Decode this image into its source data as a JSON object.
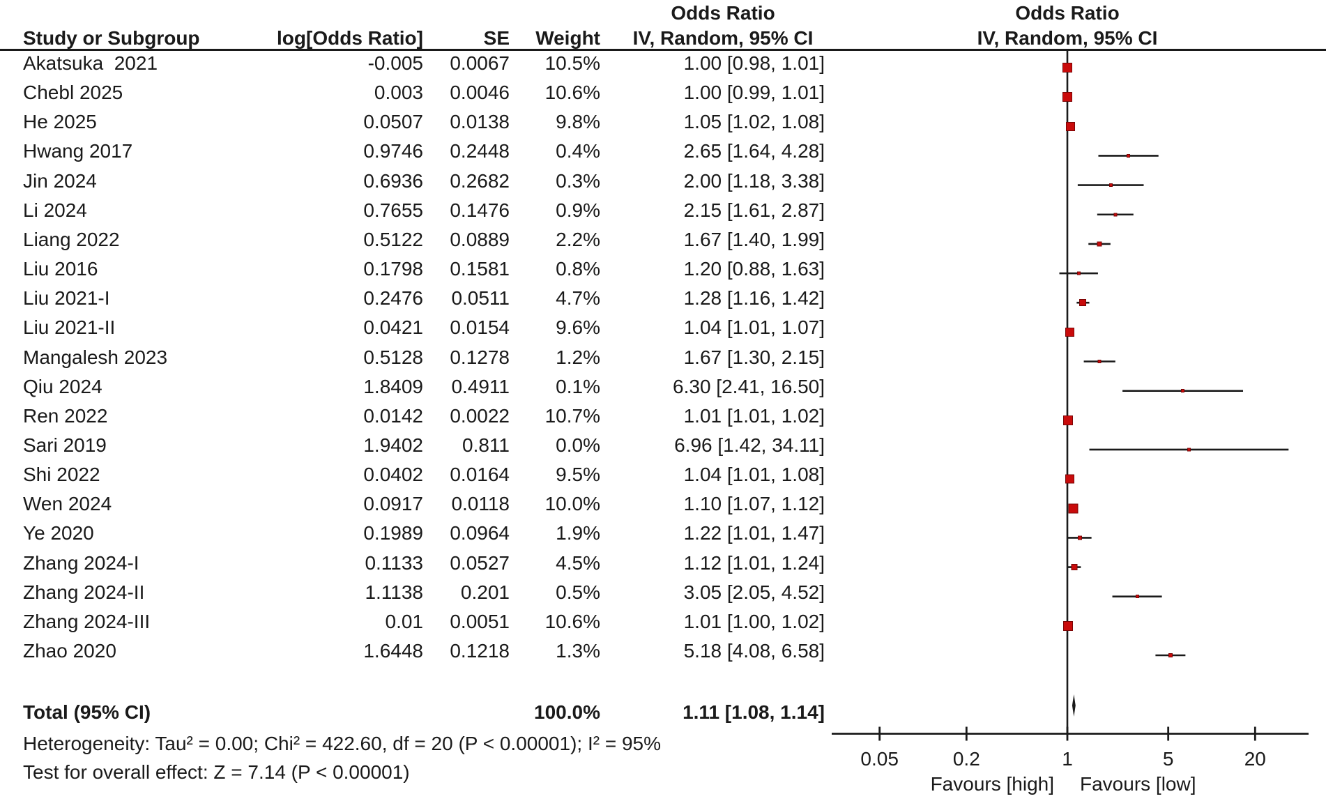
{
  "header": {
    "effect_title_left": "Odds Ratio",
    "effect_title_right": "Odds Ratio",
    "col_study": "Study or Subgroup",
    "col_logor": "log[Odds Ratio]",
    "col_se": "SE",
    "col_weight": "Weight",
    "col_ci_left": "IV, Random, 95% CI",
    "col_ci_right": "IV, Random, 95% CI"
  },
  "chart_data": {
    "type": "forest",
    "x_scale": "log",
    "axis_ticks": [
      {
        "value": 0.05,
        "label": "0.05"
      },
      {
        "value": 0.2,
        "label": "0.2"
      },
      {
        "value": 1,
        "label": "1"
      },
      {
        "value": 5,
        "label": "5"
      },
      {
        "value": 20,
        "label": "20"
      }
    ],
    "null_line_value": 1,
    "favours_left": "Favours [high]",
    "favours_right": "Favours [low]",
    "marker_color": "#c90b0b",
    "marker_border": "#7a0404",
    "line_color": "#1a1a1a",
    "studies": [
      {
        "name": "Akatsuka  2021",
        "logor": "-0.005",
        "se": "0.0067",
        "weight": "10.5%",
        "weight_pct": 10.5,
        "ci_text": "1.00 [0.98, 1.01]",
        "or": 1.0,
        "lo": 0.98,
        "hi": 1.01
      },
      {
        "name": "Chebl 2025",
        "logor": "0.003",
        "se": "0.0046",
        "weight": "10.6%",
        "weight_pct": 10.6,
        "ci_text": "1.00 [0.99, 1.01]",
        "or": 1.0,
        "lo": 0.99,
        "hi": 1.01
      },
      {
        "name": "He 2025",
        "logor": "0.0507",
        "se": "0.0138",
        "weight": "9.8%",
        "weight_pct": 9.8,
        "ci_text": "1.05 [1.02, 1.08]",
        "or": 1.05,
        "lo": 1.02,
        "hi": 1.08
      },
      {
        "name": "Hwang 2017",
        "logor": "0.9746",
        "se": "0.2448",
        "weight": "0.4%",
        "weight_pct": 0.4,
        "ci_text": "2.65 [1.64, 4.28]",
        "or": 2.65,
        "lo": 1.64,
        "hi": 4.28
      },
      {
        "name": "Jin 2024",
        "logor": "0.6936",
        "se": "0.2682",
        "weight": "0.3%",
        "weight_pct": 0.3,
        "ci_text": "2.00 [1.18, 3.38]",
        "or": 2.0,
        "lo": 1.18,
        "hi": 3.38
      },
      {
        "name": "Li 2024",
        "logor": "0.7655",
        "se": "0.1476",
        "weight": "0.9%",
        "weight_pct": 0.9,
        "ci_text": "2.15 [1.61, 2.87]",
        "or": 2.15,
        "lo": 1.61,
        "hi": 2.87
      },
      {
        "name": "Liang 2022",
        "logor": "0.5122",
        "se": "0.0889",
        "weight": "2.2%",
        "weight_pct": 2.2,
        "ci_text": "1.67 [1.40, 1.99]",
        "or": 1.67,
        "lo": 1.4,
        "hi": 1.99
      },
      {
        "name": "Liu 2016",
        "logor": "0.1798",
        "se": "0.1581",
        "weight": "0.8%",
        "weight_pct": 0.8,
        "ci_text": "1.20 [0.88, 1.63]",
        "or": 1.2,
        "lo": 0.88,
        "hi": 1.63
      },
      {
        "name": "Liu 2021-I",
        "logor": "0.2476",
        "se": "0.0511",
        "weight": "4.7%",
        "weight_pct": 4.7,
        "ci_text": "1.28 [1.16, 1.42]",
        "or": 1.28,
        "lo": 1.16,
        "hi": 1.42
      },
      {
        "name": "Liu 2021-II",
        "logor": "0.0421",
        "se": "0.0154",
        "weight": "9.6%",
        "weight_pct": 9.6,
        "ci_text": "1.04 [1.01, 1.07]",
        "or": 1.04,
        "lo": 1.01,
        "hi": 1.07
      },
      {
        "name": "Mangalesh 2023",
        "logor": "0.5128",
        "se": "0.1278",
        "weight": "1.2%",
        "weight_pct": 1.2,
        "ci_text": "1.67 [1.30, 2.15]",
        "or": 1.67,
        "lo": 1.3,
        "hi": 2.15
      },
      {
        "name": "Qiu 2024",
        "logor": "1.8409",
        "se": "0.4911",
        "weight": "0.1%",
        "weight_pct": 0.1,
        "ci_text": "6.30 [2.41, 16.50]",
        "or": 6.3,
        "lo": 2.41,
        "hi": 16.5
      },
      {
        "name": "Ren 2022",
        "logor": "0.0142",
        "se": "0.0022",
        "weight": "10.7%",
        "weight_pct": 10.7,
        "ci_text": "1.01 [1.01, 1.02]",
        "or": 1.01,
        "lo": 1.01,
        "hi": 1.02
      },
      {
        "name": "Sari 2019",
        "logor": "1.9402",
        "se": "0.811",
        "weight": "0.0%",
        "weight_pct": 0.0,
        "ci_text": "6.96 [1.42, 34.11]",
        "or": 6.96,
        "lo": 1.42,
        "hi": 34.11
      },
      {
        "name": "Shi 2022",
        "logor": "0.0402",
        "se": "0.0164",
        "weight": "9.5%",
        "weight_pct": 9.5,
        "ci_text": "1.04 [1.01, 1.08]",
        "or": 1.04,
        "lo": 1.01,
        "hi": 1.08
      },
      {
        "name": "Wen 2024",
        "logor": "0.0917",
        "se": "0.0118",
        "weight": "10.0%",
        "weight_pct": 10.0,
        "ci_text": "1.10 [1.07, 1.12]",
        "or": 1.1,
        "lo": 1.07,
        "hi": 1.12
      },
      {
        "name": "Ye 2020",
        "logor": "0.1989",
        "se": "0.0964",
        "weight": "1.9%",
        "weight_pct": 1.9,
        "ci_text": "1.22 [1.01, 1.47]",
        "or": 1.22,
        "lo": 1.01,
        "hi": 1.47
      },
      {
        "name": "Zhang 2024-I",
        "logor": "0.1133",
        "se": "0.0527",
        "weight": "4.5%",
        "weight_pct": 4.5,
        "ci_text": "1.12 [1.01, 1.24]",
        "or": 1.12,
        "lo": 1.01,
        "hi": 1.24
      },
      {
        "name": "Zhang 2024-II",
        "logor": "1.1138",
        "se": "0.201",
        "weight": "0.5%",
        "weight_pct": 0.5,
        "ci_text": "3.05 [2.05, 4.52]",
        "or": 3.05,
        "lo": 2.05,
        "hi": 4.52
      },
      {
        "name": "Zhang 2024-III",
        "logor": "0.01",
        "se": "0.0051",
        "weight": "10.6%",
        "weight_pct": 10.6,
        "ci_text": "1.01 [1.00, 1.02]",
        "or": 1.01,
        "lo": 1.0,
        "hi": 1.02
      },
      {
        "name": "Zhao 2020",
        "logor": "1.6448",
        "se": "0.1218",
        "weight": "1.3%",
        "weight_pct": 1.3,
        "ci_text": "5.18 [4.08, 6.58]",
        "or": 5.18,
        "lo": 4.08,
        "hi": 6.58
      }
    ],
    "total": {
      "label": "Total (95% CI)",
      "weight": "100.0%",
      "ci_text": "1.11 [1.08, 1.14]",
      "or": 1.11,
      "lo": 1.08,
      "hi": 1.14
    }
  },
  "footer": {
    "heterogeneity": "Heterogeneity: Tau² = 0.00; Chi² = 422.60, df = 20 (P < 0.00001); I² = 95%",
    "overall_effect": "Test for overall effect: Z = 7.14 (P < 0.00001)"
  }
}
